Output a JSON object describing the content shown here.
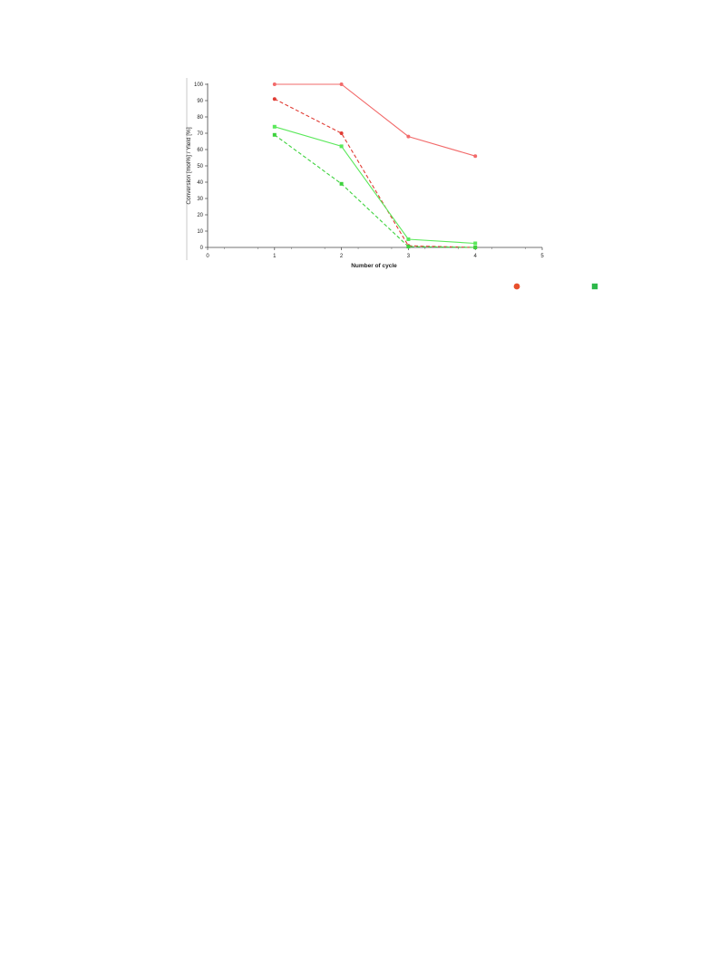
{
  "chart_data": {
    "type": "line",
    "title": "",
    "xlabel": "Number of cycle",
    "ylabel": "Conversion [mol%] / Yield [%]",
    "xlim": [
      0,
      5
    ],
    "ylim": [
      0,
      100
    ],
    "xticks": [
      0,
      1,
      2,
      3,
      4,
      5
    ],
    "yticks": [
      0,
      10,
      20,
      30,
      40,
      50,
      60,
      70,
      80,
      90,
      100
    ],
    "grid": false,
    "series": [
      {
        "key": "red-solid",
        "color": "#f26a6a",
        "line": "solid",
        "marker": "circle",
        "x": [
          1,
          2,
          3,
          4
        ],
        "y": [
          100,
          100,
          68,
          56
        ]
      },
      {
        "key": "red-dashed",
        "color": "#e03c34",
        "line": "dashed",
        "marker": "circle",
        "x": [
          1,
          2,
          3,
          4
        ],
        "y": [
          91,
          70,
          1,
          0
        ]
      },
      {
        "key": "green-solid",
        "color": "#5ae85a",
        "line": "solid",
        "marker": "square",
        "x": [
          1,
          2,
          3,
          4
        ],
        "y": [
          74,
          62,
          5,
          2.5
        ]
      },
      {
        "key": "green-dashed",
        "color": "#3cd23c",
        "line": "dashed",
        "marker": "square",
        "x": [
          1,
          2,
          3,
          4
        ],
        "y": [
          69,
          39,
          0.5,
          0
        ]
      }
    ],
    "legend": {
      "placement": "bottom-right",
      "items": [
        {
          "marker": "circle",
          "color": "#e8502c"
        },
        {
          "marker": "square",
          "color": "#2db84a"
        }
      ]
    }
  }
}
